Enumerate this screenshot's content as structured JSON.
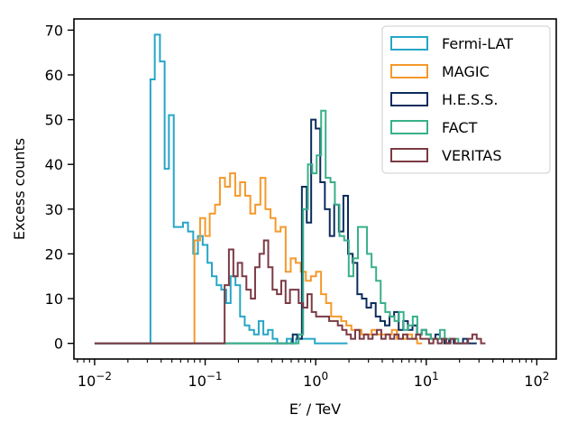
{
  "chart_data": {
    "type": "histogram-step",
    "xlabel": "E′ / TeV",
    "ylabel": "Excess counts",
    "xscale": "log",
    "xlim": [
      0.0065,
      150
    ],
    "ylim": [
      -3.5,
      72.5
    ],
    "y_ticks": [
      "0",
      "10",
      "20",
      "30",
      "40",
      "50",
      "60",
      "70"
    ],
    "x_ticks": [
      {
        "value": 0.01,
        "base": "10",
        "exp": "−2"
      },
      {
        "value": 0.1,
        "base": "10",
        "exp": "−1"
      },
      {
        "value": 1,
        "base": "10",
        "exp": "0"
      },
      {
        "value": 10,
        "base": "10",
        "exp": "1"
      },
      {
        "value": 100,
        "base": "10",
        "exp": "2"
      }
    ],
    "legend_position": "top-right",
    "series": [
      {
        "name": "Fermi-LAT",
        "color": "#26a6c7",
        "edges_x": [
          0.01,
          0.032,
          0.035,
          0.039,
          0.043,
          0.047,
          0.052,
          0.057,
          0.063,
          0.07,
          0.078,
          0.086,
          0.095,
          0.105,
          0.115,
          0.127,
          0.14,
          0.155,
          0.17,
          0.188,
          0.207,
          0.228,
          0.251,
          0.277,
          0.305,
          0.336,
          0.37,
          0.408,
          0.45,
          0.496,
          0.547,
          0.603,
          0.665,
          0.733,
          0.808,
          0.891,
          0.982,
          1.08,
          1.19,
          1.31,
          1.45,
          1.6,
          1.76,
          1.94,
          2.14
        ],
        "values": [
          0,
          59,
          69,
          63,
          39,
          51,
          26,
          26,
          27,
          25,
          20,
          24,
          22,
          18,
          15,
          13,
          12,
          9,
          15,
          13,
          6,
          4,
          3,
          2,
          5,
          2,
          3,
          1,
          0,
          0,
          1,
          0,
          1,
          1,
          1,
          1,
          0,
          0,
          0,
          0,
          0,
          0,
          0
        ]
      },
      {
        "name": "MAGIC",
        "color": "#f5992b",
        "edges_x": [
          0.01,
          0.08,
          0.09,
          0.1,
          0.11,
          0.123,
          0.136,
          0.151,
          0.168,
          0.187,
          0.207,
          0.23,
          0.256,
          0.284,
          0.316,
          0.351,
          0.39,
          0.433,
          0.481,
          0.535,
          0.594,
          0.66,
          0.733,
          0.815,
          0.905,
          1.006,
          1.118,
          1.242,
          1.38,
          1.533,
          1.703,
          1.892,
          2.103,
          2.336,
          2.596,
          2.884,
          3.205,
          3.561,
          3.956,
          4.396,
          4.884,
          5.427,
          6.03,
          6.7,
          7.444,
          8.271,
          9.19,
          10.21
        ],
        "values": [
          0,
          23,
          28,
          24,
          29,
          31,
          37,
          35,
          38,
          33,
          36,
          33,
          29,
          31,
          37,
          30,
          28,
          25,
          26,
          16,
          19,
          18,
          16,
          14,
          15,
          16,
          11,
          9,
          6,
          6,
          5,
          4,
          3,
          3,
          2,
          2,
          3,
          2,
          2,
          2,
          3,
          1,
          1,
          2,
          1,
          0
        ]
      },
      {
        "name": "H.E.S.S.",
        "color": "#0b2d5c",
        "edges_x": [
          0.01,
          0.62,
          0.68,
          0.75,
          0.83,
          0.91,
          1.0,
          1.1,
          1.21,
          1.34,
          1.47,
          1.62,
          1.78,
          1.96,
          2.16,
          2.38,
          2.62,
          2.88,
          3.17,
          3.49,
          3.84,
          4.23,
          4.65,
          5.12,
          5.63,
          6.2,
          6.82,
          7.51,
          8.26,
          9.09,
          10.0,
          11.0,
          12.1,
          13.3,
          14.6,
          16.1,
          17.7,
          19.5,
          21.5,
          23.6,
          26.0,
          28.6,
          31.5
        ],
        "values": [
          0,
          2,
          1,
          35,
          27,
          50,
          48,
          36,
          30,
          24,
          31,
          25,
          33,
          20,
          18,
          11,
          10,
          8,
          9,
          6,
          5,
          4,
          6,
          7,
          3,
          5,
          3,
          4,
          2,
          3,
          2,
          1,
          2,
          1,
          0,
          1,
          0,
          0,
          1,
          0,
          0
        ]
      },
      {
        "name": "FACT",
        "color": "#38b08a",
        "edges_x": [
          0.01,
          0.7,
          0.77,
          0.85,
          0.93,
          1.02,
          1.12,
          1.23,
          1.36,
          1.49,
          1.64,
          1.81,
          1.99,
          2.19,
          2.41,
          2.65,
          2.91,
          3.2,
          3.52,
          3.87,
          4.26,
          4.69,
          5.16,
          5.67,
          6.24,
          6.86,
          7.55,
          8.3,
          9.13,
          10.0,
          11.0,
          12.1,
          13.3,
          14.7,
          16.1,
          17.7,
          19.5,
          21.5,
          23.6,
          26.0
        ],
        "values": [
          0,
          2,
          30,
          40,
          38,
          42,
          52,
          37,
          36,
          31,
          24,
          23,
          15,
          19,
          26,
          26,
          20,
          17,
          14,
          9,
          7,
          6,
          5,
          7,
          3,
          4,
          6,
          2,
          3,
          2,
          1,
          1,
          3,
          1,
          1,
          1,
          0,
          0
        ]
      },
      {
        "name": "VERITAS",
        "color": "#7b3a44",
        "edges_x": [
          0.01,
          0.15,
          0.164,
          0.18,
          0.197,
          0.216,
          0.236,
          0.259,
          0.283,
          0.31,
          0.34,
          0.372,
          0.407,
          0.446,
          0.488,
          0.534,
          0.585,
          0.641,
          0.701,
          0.768,
          0.841,
          0.92,
          1.008,
          1.104,
          1.208,
          1.323,
          1.448,
          1.585,
          1.736,
          1.9,
          2.08,
          2.277,
          2.493,
          2.73,
          2.988,
          3.271,
          3.581,
          3.92,
          4.291,
          4.697,
          5.142,
          5.629,
          6.162,
          6.745,
          7.383,
          8.082,
          8.847,
          9.685,
          10.6,
          11.6,
          12.7,
          13.9,
          15.2,
          16.6,
          18.2,
          19.9,
          21.8,
          23.9,
          26.1,
          28.6,
          31.3,
          34.3
        ],
        "values": [
          0,
          13,
          21,
          15,
          18,
          15,
          12,
          10,
          17,
          20,
          23,
          17,
          12,
          11,
          14,
          9,
          12,
          12,
          9,
          8,
          11,
          7,
          6,
          6,
          6,
          5,
          5,
          4,
          3,
          2,
          1,
          3,
          1,
          2,
          1,
          2,
          3,
          1,
          2,
          1,
          2,
          1,
          2,
          1,
          1,
          2,
          1,
          1,
          0,
          1,
          0,
          1,
          0,
          1,
          0,
          0,
          0,
          1,
          2,
          1,
          0
        ]
      }
    ]
  }
}
